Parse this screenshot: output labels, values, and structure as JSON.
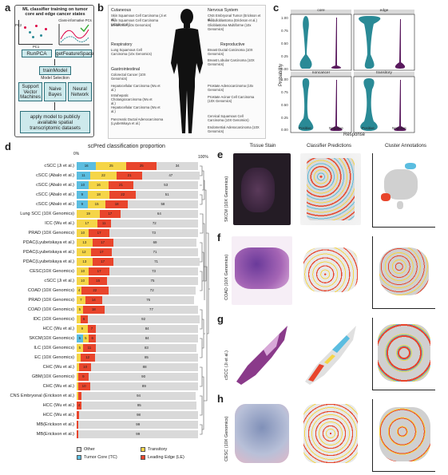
{
  "panel_letters": {
    "a": "a",
    "b": "b",
    "c": "c",
    "d": "d",
    "e": "e",
    "f": "f",
    "g": "g",
    "h": "h"
  },
  "panel_a": {
    "title": "ML classifier training on tumor core and edge cancer states",
    "pca_label": "PC2",
    "pc1_label": "PC1",
    "ci_label": "Class-informative PCs",
    "runpca": "RunPCA",
    "getfeature": "getFeatureSpace",
    "trainmodel": "trainModel",
    "model_selection": "Model Selection",
    "models": [
      "Support Vector Machines",
      "Naive Bayes",
      "Neural Network"
    ],
    "apply": "apply model to publicly available spatial transcriptomic datasets"
  },
  "panel_b": {
    "groups": {
      "cutaneous": {
        "head": "Cutaneous",
        "items": [
          "Skin Squamous Cell Carcinoma (Ji et al.)",
          "Skin Squamous Cell Carcinoma (Abalo et al.)",
          "Melanoma (10x Genomics)"
        ]
      },
      "respiratory": {
        "head": "Respiratory",
        "items": [
          "Lung Squamous Cell Carcinoma (10x Genomics)"
        ]
      },
      "gastro": {
        "head": "Gastrointestinal",
        "items": [
          "Colorectal Cancer (10X Genomics)",
          "Hepatocellular Carcinoma (Wu et al.)",
          "Intrahepatic Cholangiocarcinoma (Wu et al.)",
          "Hepatocellular Carcinoma (Wu et al.)",
          "Pancreatic Ductal Adenocarcinoma (Lyubetskaya et al.)"
        ]
      },
      "nervous": {
        "head": "Nervous System",
        "items": [
          "CNS Embryonal Tumor (Erickson et al.)",
          "Medulloblastoma (Erickson et al.)",
          "Glioblastoma Multiforme (10x Genomics)"
        ]
      },
      "reproductive": {
        "head": "Reproductive",
        "items": [
          "Breast Ductal Carcinoma (10X Genomics)",
          "Breast Lobular Carcinoma (10X Genomics)",
          "Prostate Adenocarcinoma (10x Genomics)",
          "Prostate Acinar Cell Carcinoma (10X Genomics)",
          "Cervical Squamous Cell Carcinoma (10X Genomics)",
          "Endometrial Adenocarcinoma (10X Genomics)"
        ]
      }
    }
  },
  "panel_c": {
    "facets": [
      "core",
      "edge",
      "noncancer",
      "transitory"
    ],
    "ylabel": "Probability",
    "xlabel": "Response",
    "xticks": [
      "Positive",
      "Negative"
    ],
    "yticks": [
      "0.00",
      "0.25",
      "0.50",
      "0.75",
      "1.00"
    ],
    "colors": {
      "positive": "#2a8a96",
      "negative": "#5a1a5e"
    }
  },
  "chart_data": {
    "type": "bar",
    "title": "scPred classification proportion",
    "xaxis_end_label": "100%",
    "xaxis_start_label": "0%",
    "categories": [
      "cSCC (Ji et al.)",
      "cSCC (Abalo et al.)",
      "cSCC (Abalo et al.)",
      "cSCC (Abalo et al.)",
      "cSCC (Abalo et al.)",
      "Lung SCC (10X Genomics)",
      "ICC (Wu et al.)",
      "PRAD (10X Genomics)",
      "PDAC(Lyubetskaya et al.)",
      "PDAC(Lyubetskaya et al.)",
      "PDAC(Lyubetskaya et al.)",
      "CESC(10X Genomics)",
      "cSCC (Ji et al.)",
      "COAD (10X Genomics)",
      "PRAD (10X Genomics)",
      "COAD (10X Genomics)",
      "IDC (10X Genomics)",
      "HCC (Wu et al.)",
      "SKCM(10X Genomics)",
      "ILC (10X Genomics)",
      "EC (10X Genomics)",
      "CHC (Wu et al.)",
      "GBM(10X Genomics)",
      "CHC (Wu et al.)",
      "CNS Embryonal (Erickson et al.)",
      "HCC (Wu et al.)",
      "HCC (Wu et al.)",
      "MB(Erickson et al.)",
      "MB(Erickson et al.)"
    ],
    "series": [
      {
        "name": "Tumor Core (TC)",
        "color": "#5bbde0",
        "values": [
          16,
          11,
          10,
          9,
          9,
          0,
          0,
          0,
          0,
          0,
          0,
          0,
          0,
          0,
          0,
          0,
          0,
          0,
          5,
          0,
          0,
          0,
          0,
          0,
          0,
          0,
          0,
          0,
          0
        ]
      },
      {
        "name": "Transitory",
        "color": "#f5d547",
        "values": [
          25,
          22,
          16,
          18,
          15,
          19,
          17,
          10,
          13,
          12,
          13,
          10,
          10,
          4,
          7,
          5,
          3,
          9,
          5,
          5,
          3,
          2,
          1,
          1,
          1,
          0,
          0,
          0,
          0
        ]
      },
      {
        "name": "Leading Edge (LE)",
        "color": "#e8452c",
        "values": [
          25,
          21,
          21,
          22,
          18,
          17,
          11,
          17,
          17,
          17,
          17,
          17,
          15,
          22,
          14,
          18,
          6,
          7,
          6,
          11,
          12,
          10,
          9,
          10,
          3,
          4,
          2,
          1,
          1
        ]
      },
      {
        "name": "Other",
        "color": "#d9d9d9",
        "values": [
          34,
          47,
          53,
          51,
          58,
          64,
          72,
          73,
          69,
          71,
          71,
          73,
          75,
          72,
          76,
          77,
          92,
          84,
          84,
          83,
          85,
          88,
          90,
          89,
          94,
          95,
          98,
          99,
          99
        ]
      }
    ],
    "legend": [
      "Other",
      "Transitory",
      "Tumor Core (TC)",
      "Leading Edge (LE)"
    ],
    "legend_placement": "bottom"
  },
  "panels_efgh": {
    "col_titles": [
      "Tissue Stain",
      "Classifier Predictions",
      "Cluster Annotations"
    ],
    "row_labels": [
      "SKCM (10X Genomics)",
      "COAD (10X Genomics)",
      "cSCC (Ji et al.)",
      "CESC (10X Genomics)"
    ]
  }
}
